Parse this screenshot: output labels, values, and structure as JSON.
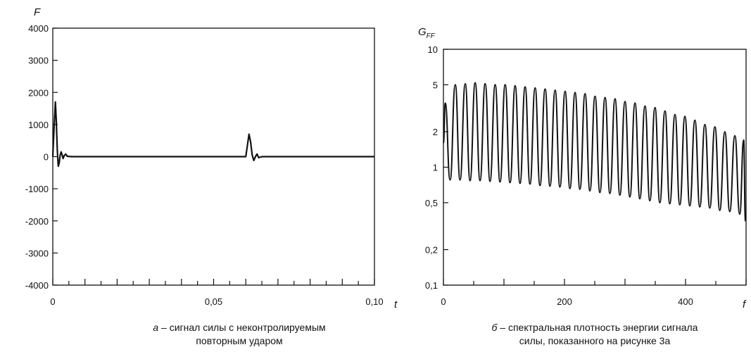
{
  "chart_data": [
    {
      "type": "line",
      "ylabel": "F",
      "xlabel": "t",
      "xlim": [
        0,
        0.1
      ],
      "ylim": [
        -4000,
        4000
      ],
      "x_ticks": [
        "0",
        "0,05",
        "0,10"
      ],
      "y_ticks": [
        "4000",
        "3000",
        "2000",
        "1000",
        "0",
        "-1000",
        "-2000",
        "-3000",
        "-4000"
      ],
      "grid": false,
      "caption_label": "a",
      "caption_text": " – сигнал силы с неконтролируемым",
      "caption_line2": "повторным ударом",
      "series": [
        {
          "x": [
            0,
            0.0004,
            0.0008,
            0.0011,
            0.0014,
            0.0017,
            0.002,
            0.0023,
            0.0026,
            0.0029,
            0.0032,
            0.0035,
            0.004,
            0.0045,
            0.006,
            0.01,
            0.02,
            0.03,
            0.04,
            0.05,
            0.058,
            0.059,
            0.06,
            0.0605,
            0.061,
            0.0615,
            0.062,
            0.0625,
            0.063,
            0.0635,
            0.064,
            0.065,
            0.07,
            0.08,
            0.09,
            0.1
          ],
          "y": [
            0,
            900,
            1700,
            1100,
            200,
            -300,
            -200,
            50,
            150,
            50,
            -60,
            20,
            80,
            10,
            0,
            0,
            0,
            0,
            0,
            0,
            0,
            0,
            0,
            350,
            700,
            450,
            50,
            -120,
            0,
            80,
            -30,
            0,
            0,
            0,
            0,
            0
          ]
        }
      ]
    },
    {
      "type": "line",
      "ylabel": "G",
      "ylabel_sub": "FF",
      "xlabel": "f",
      "xlim": [
        0,
        500
      ],
      "ylim": [
        0.1,
        10
      ],
      "yscale": "log",
      "x_ticks": [
        0,
        200,
        400
      ],
      "x_tick_labels": [
        "0",
        "200",
        "400"
      ],
      "y_ticks": [
        0.1,
        0.2,
        0.5,
        1,
        2,
        5,
        10
      ],
      "y_tick_labels": [
        "0,1",
        "0,2",
        "0,5",
        "1",
        "2",
        "5",
        "10"
      ],
      "grid": false,
      "caption_label": "б",
      "caption_text": " – спектральная плотность энергии сигнала",
      "caption_line2": "силы, показанного на рисунке 3а",
      "series": [
        {
          "peaks_x": [
            3,
            19.5,
            36,
            52.5,
            69,
            85.5,
            102,
            118.5,
            135,
            151.5,
            168,
            184.5,
            201,
            217.5,
            234,
            250.5,
            267,
            283.5,
            300,
            316.5,
            333,
            349.5,
            366,
            382.5,
            399,
            415.5,
            432,
            448.5,
            465,
            481.5,
            496
          ],
          "peaks_y": [
            3.5,
            5.0,
            5.1,
            5.2,
            5.1,
            5.0,
            5.0,
            4.9,
            4.8,
            4.7,
            4.6,
            4.5,
            4.4,
            4.3,
            4.2,
            4.0,
            3.9,
            3.8,
            3.6,
            3.5,
            3.3,
            3.2,
            3.0,
            2.8,
            2.7,
            2.5,
            2.3,
            2.2,
            2.0,
            1.85,
            1.7
          ],
          "troughs_x": [
            11,
            27.5,
            44,
            60.5,
            77,
            93.5,
            110,
            126.5,
            143,
            159.5,
            176,
            192.5,
            209,
            225.5,
            242,
            258.5,
            275,
            291.5,
            308,
            324.5,
            341,
            357.5,
            374,
            390.5,
            407,
            423.5,
            440,
            456.5,
            473,
            489.5
          ],
          "troughs_y": [
            0.78,
            0.78,
            0.77,
            0.77,
            0.76,
            0.75,
            0.74,
            0.73,
            0.72,
            0.7,
            0.69,
            0.68,
            0.66,
            0.65,
            0.63,
            0.61,
            0.6,
            0.58,
            0.56,
            0.54,
            0.52,
            0.5,
            0.49,
            0.48,
            0.47,
            0.46,
            0.45,
            0.43,
            0.42,
            0.4
          ],
          "end": [
            499,
            0.35
          ]
        }
      ]
    }
  ]
}
